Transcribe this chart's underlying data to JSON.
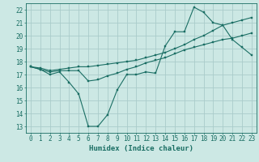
{
  "xlabel": "Humidex (Indice chaleur)",
  "bg_color": "#cce8e4",
  "grid_color": "#aaccca",
  "line_color": "#1a6e64",
  "xlim": [
    -0.5,
    23.5
  ],
  "ylim": [
    12.5,
    22.5
  ],
  "yticks": [
    13,
    14,
    15,
    16,
    17,
    18,
    19,
    20,
    21,
    22
  ],
  "xticks": [
    0,
    1,
    2,
    3,
    4,
    5,
    6,
    7,
    8,
    9,
    10,
    11,
    12,
    13,
    14,
    15,
    16,
    17,
    18,
    19,
    20,
    21,
    22,
    23
  ],
  "line1_x": [
    0,
    1,
    2,
    3,
    4,
    5,
    6,
    7,
    8,
    9,
    10,
    11,
    12,
    13,
    14,
    15,
    16,
    17,
    18,
    19,
    20,
    21,
    22,
    23
  ],
  "line1_y": [
    17.6,
    17.4,
    17.0,
    17.2,
    16.4,
    15.5,
    13.0,
    13.0,
    13.9,
    15.8,
    17.0,
    17.0,
    17.2,
    17.1,
    19.2,
    20.3,
    20.3,
    22.2,
    21.8,
    21.0,
    20.8,
    19.7,
    19.1,
    18.5
  ],
  "line2_x": [
    0,
    1,
    2,
    3,
    4,
    5,
    6,
    7,
    8,
    9,
    10,
    11,
    12,
    13,
    14,
    15,
    16,
    17,
    18,
    19,
    20,
    21,
    22,
    23
  ],
  "line2_y": [
    17.6,
    17.4,
    17.2,
    17.3,
    17.3,
    17.3,
    16.5,
    16.6,
    16.9,
    17.1,
    17.4,
    17.6,
    17.9,
    18.1,
    18.3,
    18.6,
    18.9,
    19.1,
    19.3,
    19.5,
    19.7,
    19.8,
    20.0,
    20.2
  ],
  "line3_x": [
    0,
    1,
    2,
    3,
    4,
    5,
    6,
    7,
    8,
    9,
    10,
    11,
    12,
    13,
    14,
    15,
    16,
    17,
    18,
    19,
    20,
    21,
    22,
    23
  ],
  "line3_y": [
    17.6,
    17.5,
    17.3,
    17.4,
    17.5,
    17.6,
    17.6,
    17.7,
    17.8,
    17.9,
    18.0,
    18.1,
    18.3,
    18.5,
    18.7,
    19.0,
    19.3,
    19.7,
    20.0,
    20.4,
    20.8,
    21.0,
    21.2,
    21.4
  ]
}
